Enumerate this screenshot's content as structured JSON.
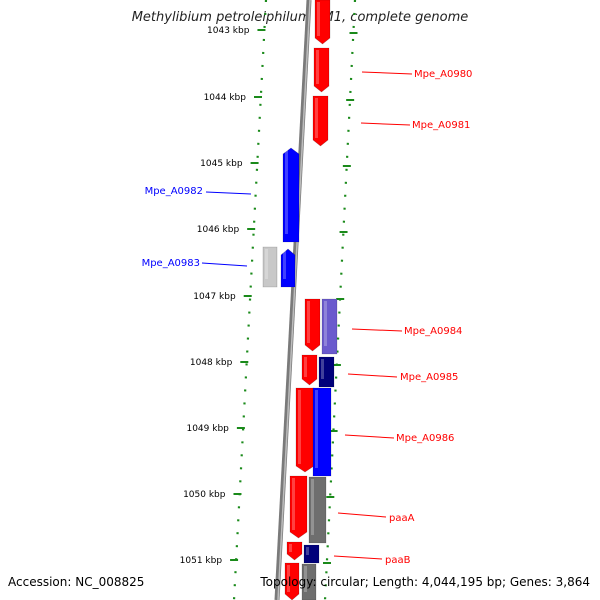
{
  "title": "Methylibium petroleiphilum PM1, complete genome",
  "footer": {
    "accession": "Accession: NC_008825",
    "summary": "Topology: circular; Length: 4,044,195 bp; Genes: 3,864"
  },
  "colors": {
    "forward": "#ff0000",
    "reverse": "#0000ff",
    "backbone": "#888888",
    "ticks": "#1a8a1a",
    "gray_feature": "#6e6e6e",
    "navy_feature": "#00007a",
    "slate_feature": "#6a5acd",
    "light_gray_feature": "#c8c8c8"
  },
  "ticks": [
    {
      "label": "1043 kbp"
    },
    {
      "label": "1044 kbp"
    },
    {
      "label": "1045 kbp"
    },
    {
      "label": "1046 kbp"
    },
    {
      "label": "1047 kbp"
    },
    {
      "label": "1048 kbp"
    },
    {
      "label": "1049 kbp"
    },
    {
      "label": "1050 kbp"
    },
    {
      "label": "1051 kbp"
    }
  ],
  "genes": [
    {
      "label": "Mpe_A0980",
      "strand": "forward"
    },
    {
      "label": "Mpe_A0981",
      "strand": "forward"
    },
    {
      "label": "Mpe_A0982",
      "strand": "reverse"
    },
    {
      "label": "Mpe_A0983",
      "strand": "reverse"
    },
    {
      "label": "Mpe_A0984",
      "strand": "forward"
    },
    {
      "label": "Mpe_A0985",
      "strand": "forward"
    },
    {
      "label": "Mpe_A0986",
      "strand": "forward"
    },
    {
      "label": "paaA",
      "strand": "forward"
    },
    {
      "label": "paaB",
      "strand": "forward"
    }
  ]
}
